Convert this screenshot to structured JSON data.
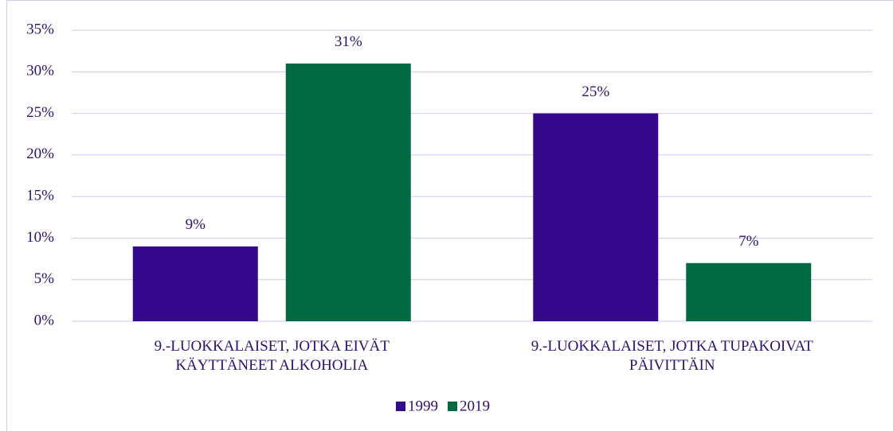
{
  "chart_data": {
    "type": "bar",
    "categories": [
      "9.-LUOKKALAISET, JOTKA EIVÄT KÄYTTÄNEET ALKOHOLIA",
      "9.-LUOKKALAISET, JOTKA TUPAKOIVAT PÄIVITTÄIN"
    ],
    "series": [
      {
        "name": "1999",
        "color": "#35098c",
        "values": [
          9,
          25
        ],
        "value_labels": [
          "9%",
          "25%"
        ]
      },
      {
        "name": "2019",
        "color": "#006b42",
        "values": [
          31,
          7
        ],
        "value_labels": [
          "31%",
          "7%"
        ]
      }
    ],
    "ylim": [
      0,
      35
    ],
    "yticks": [
      {
        "value": 0,
        "label": "0%"
      },
      {
        "value": 5,
        "label": "5%"
      },
      {
        "value": 10,
        "label": "10%"
      },
      {
        "value": 15,
        "label": "15%"
      },
      {
        "value": 20,
        "label": "20%"
      },
      {
        "value": 25,
        "label": "25%"
      },
      {
        "value": 30,
        "label": "30%"
      },
      {
        "value": 35,
        "label": "35%"
      }
    ],
    "grid": true,
    "legend": "bottom"
  }
}
